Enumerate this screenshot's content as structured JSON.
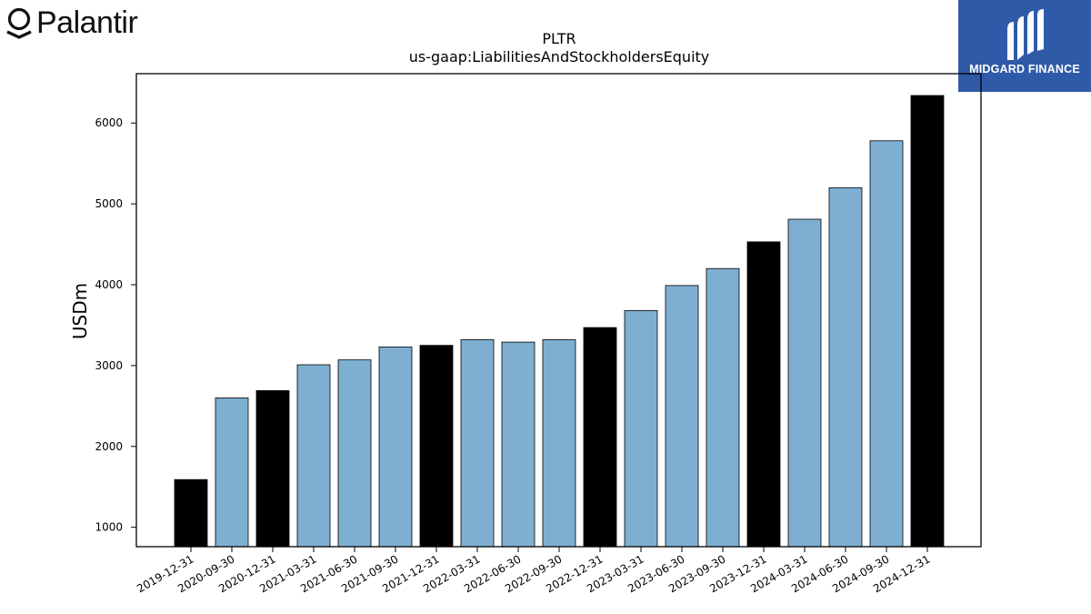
{
  "header": {
    "left_logo_text": "Palantir",
    "left_logo_icon": "palantir-ring-icon",
    "right_logo_text": "MIDGARD FINANCE",
    "right_logo_icon": "midgard-m-icon",
    "right_logo_bg": "#2f5aa8"
  },
  "chart_data": {
    "type": "bar",
    "title": "PLTR",
    "subtitle": "us-gaap:LiabilitiesAndStockholdersEquity",
    "xlabel": "",
    "ylabel": "USDm",
    "ylim": [
      760,
      6610
    ],
    "yticks": [
      1000,
      2000,
      3000,
      4000,
      5000,
      6000
    ],
    "grid": false,
    "categories": [
      "2019-12-31",
      "2020-09-30",
      "2020-12-31",
      "2021-03-31",
      "2021-06-30",
      "2021-09-30",
      "2021-12-31",
      "2022-03-31",
      "2022-06-30",
      "2022-09-30",
      "2022-12-31",
      "2023-03-31",
      "2023-06-30",
      "2023-09-30",
      "2023-12-31",
      "2024-03-31",
      "2024-06-30",
      "2024-09-30",
      "2024-12-31"
    ],
    "values": [
      1590,
      2600,
      2690,
      3010,
      3070,
      3230,
      3250,
      3320,
      3290,
      3320,
      3470,
      3680,
      3990,
      4200,
      4530,
      4810,
      5200,
      5780,
      6340
    ],
    "bar_colors": [
      "#000000",
      "#7eafd3",
      "#000000",
      "#7eafd3",
      "#7eafd3",
      "#7eafd3",
      "#000000",
      "#7eafd3",
      "#7eafd3",
      "#7eafd3",
      "#000000",
      "#7eafd3",
      "#7eafd3",
      "#7eafd3",
      "#000000",
      "#7eafd3",
      "#7eafd3",
      "#7eafd3",
      "#000000"
    ],
    "colors": {
      "annual": "#000000",
      "quarterly": "#7eafd3"
    }
  }
}
